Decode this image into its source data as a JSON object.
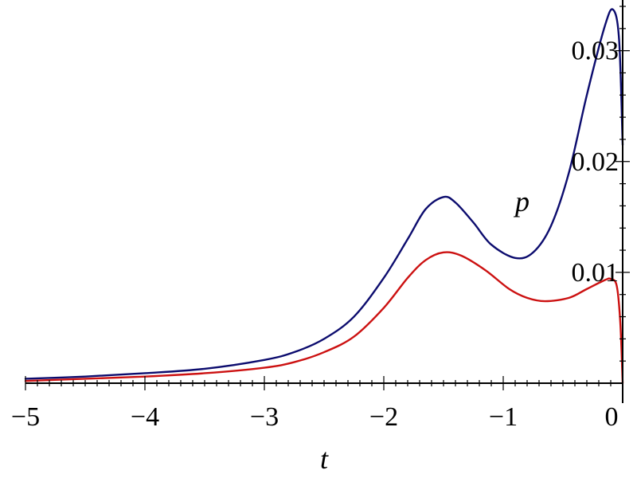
{
  "chart_data": {
    "type": "line",
    "xlabel": "t",
    "ylabel": "p",
    "xlim": [
      -5,
      0
    ],
    "ylim": [
      0,
      0.034
    ],
    "x_ticks": [
      -5,
      -4,
      -3,
      -2,
      -1,
      0
    ],
    "x_tick_labels": [
      "−5",
      "−4",
      "−3",
      "−2",
      "−1",
      "0"
    ],
    "y_ticks": [
      0.01,
      0.02,
      0.03
    ],
    "y_tick_labels": [
      "0.01",
      "0.02",
      "0.03"
    ],
    "grid": false,
    "series": [
      {
        "color": "#0c0c6e",
        "points": [
          [
            -5.0,
            0.0004
          ],
          [
            -4.5,
            0.0006
          ],
          [
            -4.0,
            0.0009
          ],
          [
            -3.5,
            0.0013
          ],
          [
            -3.0,
            0.0021
          ],
          [
            -2.75,
            0.0028
          ],
          [
            -2.5,
            0.004
          ],
          [
            -2.25,
            0.006
          ],
          [
            -2.0,
            0.0095
          ],
          [
            -1.8,
            0.013
          ],
          [
            -1.65,
            0.0157
          ],
          [
            -1.5,
            0.0168
          ],
          [
            -1.4,
            0.0163
          ],
          [
            -1.25,
            0.0145
          ],
          [
            -1.1,
            0.0125
          ],
          [
            -0.9,
            0.0113
          ],
          [
            -0.75,
            0.0118
          ],
          [
            -0.6,
            0.0142
          ],
          [
            -0.45,
            0.019
          ],
          [
            -0.3,
            0.026
          ],
          [
            -0.15,
            0.0322
          ],
          [
            -0.08,
            0.0337
          ],
          [
            -0.03,
            0.031
          ],
          [
            0.0,
            0.0215
          ]
        ]
      },
      {
        "color": "#cc1111",
        "points": [
          [
            -5.0,
            0.0002
          ],
          [
            -4.5,
            0.0004
          ],
          [
            -4.0,
            0.0006
          ],
          [
            -3.5,
            0.0009
          ],
          [
            -3.0,
            0.0014
          ],
          [
            -2.75,
            0.0019
          ],
          [
            -2.5,
            0.0028
          ],
          [
            -2.25,
            0.0042
          ],
          [
            -2.0,
            0.0068
          ],
          [
            -1.8,
            0.0095
          ],
          [
            -1.65,
            0.0111
          ],
          [
            -1.5,
            0.0118
          ],
          [
            -1.35,
            0.0115
          ],
          [
            -1.15,
            0.0102
          ],
          [
            -0.95,
            0.0085
          ],
          [
            -0.8,
            0.0077
          ],
          [
            -0.65,
            0.0074
          ],
          [
            -0.45,
            0.0077
          ],
          [
            -0.3,
            0.0085
          ],
          [
            -0.15,
            0.0093
          ],
          [
            -0.1,
            0.0094
          ],
          [
            -0.05,
            0.0088
          ],
          [
            -0.02,
            0.0055
          ],
          [
            0.0,
            0.0
          ]
        ]
      }
    ]
  }
}
